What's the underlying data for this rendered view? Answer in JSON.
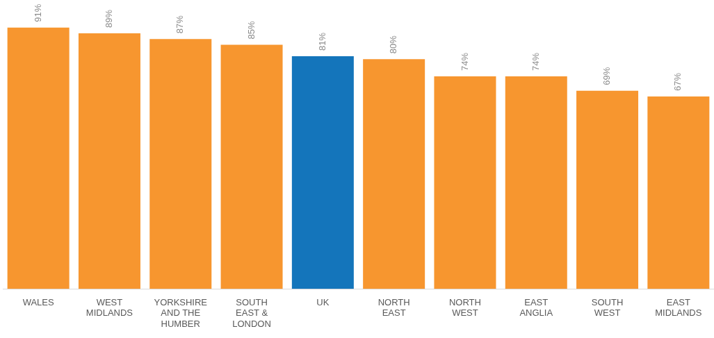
{
  "chart_data": {
    "type": "bar",
    "categories": [
      "WALES",
      "WEST MIDLANDS",
      "YORKSHIRE AND THE HUMBER",
      "SOUTH EAST & LONDON",
      "UK",
      "NORTH EAST",
      "NORTH WEST",
      "EAST ANGLIA",
      "SOUTH WEST",
      "EAST MIDLANDS"
    ],
    "values": [
      91,
      89,
      87,
      85,
      81,
      80,
      74,
      74,
      69,
      67
    ],
    "colors": [
      "#f7962f",
      "#f7962f",
      "#f7962f",
      "#f7962f",
      "#1475bb",
      "#f7962f",
      "#f7962f",
      "#f7962f",
      "#f7962f",
      "#f7962f"
    ],
    "value_labels": [
      "91%",
      "89%",
      "87%",
      "85%",
      "81%",
      "80%",
      "74%",
      "74%",
      "69%",
      "67%"
    ],
    "grid": false,
    "legend": false
  }
}
